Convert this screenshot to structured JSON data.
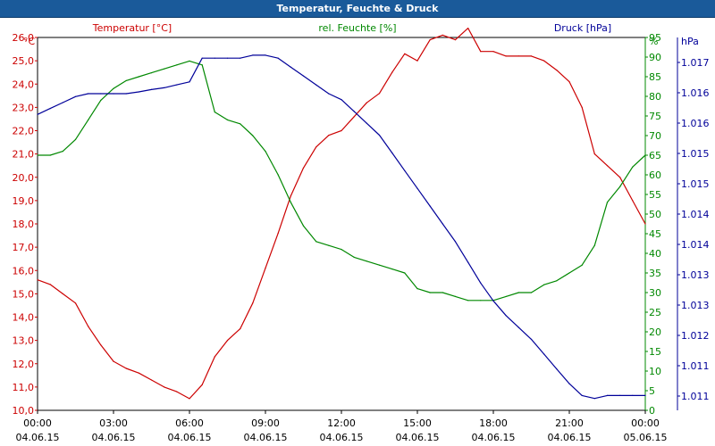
{
  "window": {
    "title": "Temperatur, Feuchte & Druck"
  },
  "chart_data": {
    "type": "line",
    "title": "Temperatur, Feuchte & Druck",
    "grid": true,
    "x_ticks": [
      {
        "time": "00:00",
        "date": "04.06.15"
      },
      {
        "time": "03:00",
        "date": "04.06.15"
      },
      {
        "time": "06:00",
        "date": "04.06.15"
      },
      {
        "time": "09:00",
        "date": "04.06.15"
      },
      {
        "time": "12:00",
        "date": "04.06.15"
      },
      {
        "time": "15:00",
        "date": "04.06.15"
      },
      {
        "time": "18:00",
        "date": "04.06.15"
      },
      {
        "time": "21:00",
        "date": "04.06.15"
      },
      {
        "time": "00:00",
        "date": "05.06.15"
      }
    ],
    "xlim_hours": [
      0,
      24
    ],
    "axes": {
      "temperature": {
        "unit": "°C",
        "min": 10.0,
        "max": 26.0,
        "ticks": [
          "10,0",
          "11,0",
          "12,0",
          "13,0",
          "14,0",
          "15,0",
          "16,0",
          "17,0",
          "18,0",
          "19,0",
          "20,0",
          "21,0",
          "22,0",
          "23,0",
          "24,0",
          "25,0",
          "26,0"
        ],
        "color": "#cc0000"
      },
      "humidity": {
        "unit": "%",
        "min": 0,
        "max": 95,
        "ticks": [
          "0",
          "5",
          "10",
          "15",
          "20",
          "25",
          "30",
          "35",
          "40",
          "45",
          "50",
          "55",
          "60",
          "65",
          "70",
          "75",
          "80",
          "85",
          "90",
          "95"
        ],
        "color": "#008800"
      },
      "pressure": {
        "unit": "hPa",
        "ticks": [
          "1.011",
          "1.011",
          "1.012",
          "1.013",
          "1.013",
          "1.014",
          "1.014",
          "1.015",
          "1.015",
          "1.016",
          "1.016",
          "1.017"
        ],
        "color": "#000099"
      }
    },
    "series": [
      {
        "name": "Temperatur [°C]",
        "axis": "temperature",
        "color": "#cc0000",
        "x": [
          0,
          0.5,
          1,
          1.5,
          2,
          2.5,
          3,
          3.5,
          4,
          4.5,
          5,
          5.5,
          6,
          6.5,
          7,
          7.5,
          8,
          8.5,
          9,
          9.5,
          10,
          10.5,
          11,
          11.5,
          12,
          12.5,
          13,
          13.5,
          14,
          14.5,
          15,
          15.5,
          16,
          16.5,
          17,
          17.5,
          18,
          18.5,
          19,
          19.5,
          20,
          20.5,
          21,
          21.5,
          22,
          22.5,
          23,
          23.5,
          24
        ],
        "values": [
          15.6,
          15.4,
          15.0,
          14.6,
          13.6,
          12.8,
          12.1,
          11.8,
          11.6,
          11.3,
          11.0,
          10.8,
          10.5,
          11.1,
          12.3,
          13.0,
          13.5,
          14.6,
          16.1,
          17.6,
          19.2,
          20.4,
          21.3,
          21.8,
          22.0,
          22.6,
          23.2,
          23.6,
          24.5,
          25.3,
          25.0,
          25.9,
          26.1,
          25.9,
          26.4,
          25.4,
          25.4,
          25.2,
          25.2,
          25.2,
          25.0,
          24.6,
          24.1,
          23.0,
          21.0,
          20.5,
          20.0,
          19.0,
          18.0
        ]
      },
      {
        "name": "rel. Feuchte [%]",
        "axis": "humidity",
        "color": "#008800",
        "x": [
          0,
          0.5,
          1,
          1.5,
          2,
          2.5,
          3,
          3.5,
          4,
          4.5,
          5,
          5.5,
          6,
          6.5,
          7,
          7.5,
          8,
          8.5,
          9,
          9.5,
          10,
          10.5,
          11,
          11.5,
          12,
          12.5,
          13,
          13.5,
          14,
          14.5,
          15,
          15.5,
          16,
          16.5,
          17,
          17.5,
          18,
          18.5,
          19,
          19.5,
          20,
          20.5,
          21,
          21.5,
          22,
          22.5,
          23,
          23.5,
          24
        ],
        "values": [
          65,
          65,
          66,
          69,
          74,
          79,
          82,
          84,
          85,
          86,
          87,
          88,
          89,
          88,
          76,
          74,
          73,
          70,
          66,
          60,
          53,
          47,
          43,
          42,
          41,
          39,
          38,
          37,
          36,
          35,
          31,
          30,
          30,
          29,
          28,
          28,
          28,
          29,
          30,
          30,
          32,
          33,
          35,
          37,
          42,
          53,
          57,
          62,
          65
        ]
      },
      {
        "name": "Druck [hPa]",
        "axis": "pressure",
        "color": "#000099",
        "x": [
          0,
          0.5,
          1,
          1.5,
          2,
          2.5,
          3,
          3.5,
          4,
          4.5,
          5,
          5.5,
          6,
          6.5,
          7,
          7.5,
          8,
          8.5,
          9,
          9.5,
          10,
          10.5,
          11,
          11.5,
          12,
          12.5,
          13,
          13.5,
          14,
          14.5,
          15,
          15.5,
          16,
          16.5,
          17,
          17.5,
          18,
          18.5,
          19,
          19.5,
          20,
          20.5,
          21,
          21.5,
          22,
          22.5,
          23,
          23.5,
          24
        ],
        "values": [
          1.01595,
          1.01605,
          1.01615,
          1.01625,
          1.0163,
          1.0163,
          1.0163,
          1.0163,
          1.01633,
          1.01637,
          1.0164,
          1.01645,
          1.0165,
          1.0169,
          1.0169,
          1.0169,
          1.0169,
          1.01695,
          1.01695,
          1.0169,
          1.01675,
          1.0166,
          1.01645,
          1.0163,
          1.0162,
          1.016,
          1.0158,
          1.0156,
          1.0153,
          1.015,
          1.0147,
          1.0144,
          1.0141,
          1.0138,
          1.01345,
          1.0131,
          1.0128,
          1.01255,
          1.01235,
          1.01215,
          1.0119,
          1.01165,
          1.0114,
          1.0112,
          1.01115,
          1.0112,
          1.0112,
          1.0112,
          1.0112
        ]
      }
    ]
  }
}
